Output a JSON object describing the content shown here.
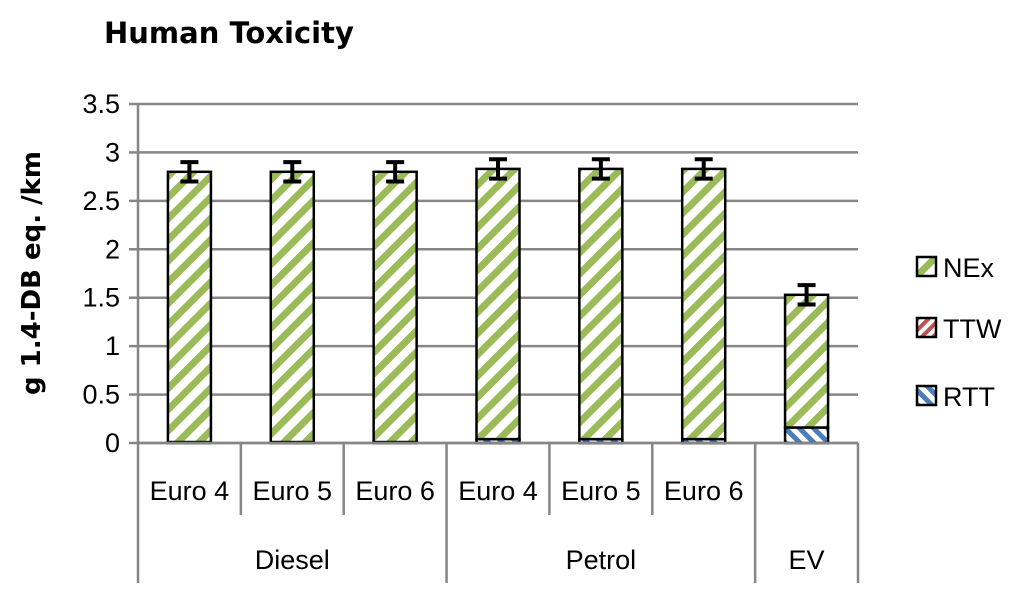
{
  "chart_data": {
    "type": "bar",
    "stacked": true,
    "title": "Human Toxicity",
    "ylabel": "g 1.4-DB eq. /km",
    "xlabel": "",
    "ylim": [
      0,
      3.5
    ],
    "yticks": [
      "0",
      "0.5",
      "1",
      "1.5",
      "2",
      "2.5",
      "3",
      "3.5"
    ],
    "grid": true,
    "legend_position": "right",
    "categories": [
      "Euro 4",
      "Euro 5",
      "Euro 6",
      "Euro 4",
      "Euro 5",
      "Euro 6",
      ""
    ],
    "groups": [
      {
        "label": "Diesel",
        "count": 3
      },
      {
        "label": "Petrol",
        "count": 3
      },
      {
        "label": "EV",
        "count": 1
      }
    ],
    "series": [
      {
        "name": "RTT",
        "color": "#4a7ebb",
        "values": [
          0.01,
          0.01,
          0.01,
          0.04,
          0.04,
          0.04,
          0.16
        ]
      },
      {
        "name": "TTW",
        "color": "#c0504d",
        "values": [
          0.0,
          0.0,
          0.0,
          0.0,
          0.0,
          0.0,
          0.0
        ]
      },
      {
        "name": "NEx",
        "color": "#9bbb59",
        "values": [
          2.79,
          2.79,
          2.79,
          2.79,
          2.79,
          2.79,
          1.37
        ]
      }
    ],
    "error_bars": [
      0.1,
      0.1,
      0.1,
      0.1,
      0.1,
      0.1,
      0.1
    ]
  }
}
